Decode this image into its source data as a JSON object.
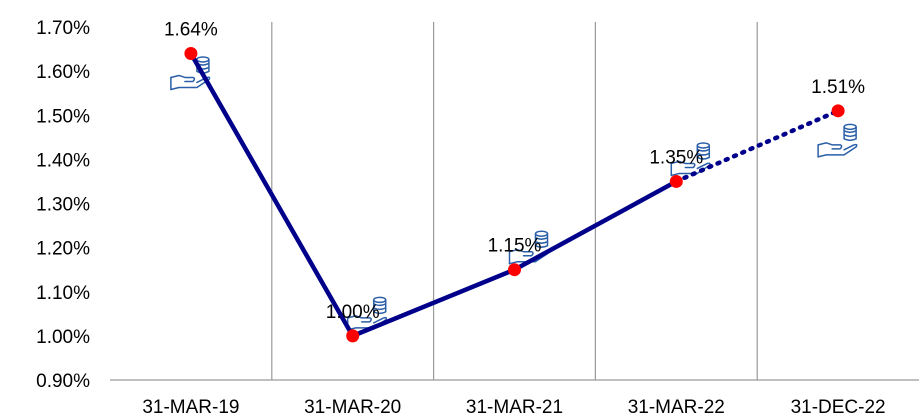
{
  "chart_data": {
    "type": "line",
    "categories": [
      "31-MAR-19",
      "31-MAR-20",
      "31-MAR-21",
      "31-MAR-22",
      "31-DEC-22"
    ],
    "y_tick_labels": [
      "0.90%",
      "1.00%",
      "1.10%",
      "1.20%",
      "1.30%",
      "1.40%",
      "1.50%",
      "1.60%",
      "1.70%"
    ],
    "ylim": [
      0.9,
      1.7
    ],
    "grid": "vertical",
    "series": [
      {
        "values": [
          1.64,
          1.0,
          1.15,
          1.35,
          1.51
        ],
        "data_labels": [
          "1.64%",
          "1.00%",
          "1.15%",
          "1.35%",
          "1.51%"
        ],
        "line_color": "#00008b",
        "marker_color": "#ff0000",
        "dotted_from_index": 3
      }
    ],
    "marker_icon": "hand-holding-coins-icon"
  }
}
